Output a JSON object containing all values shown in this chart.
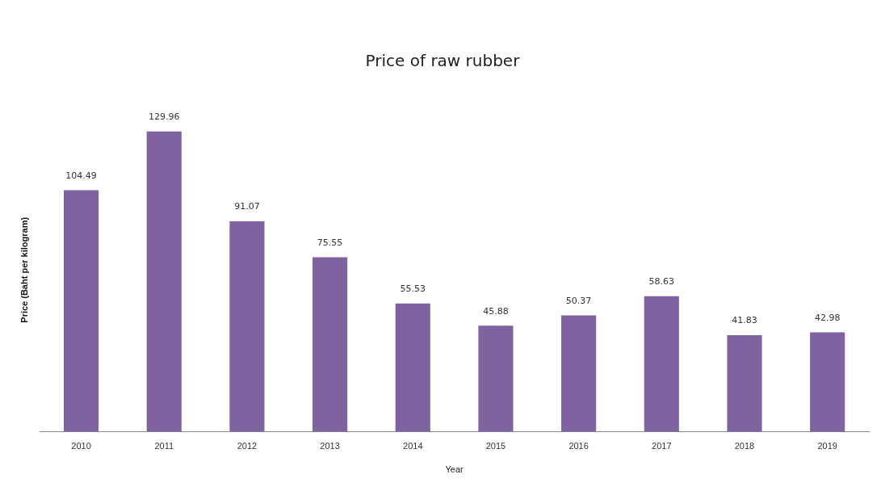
{
  "chart_data": {
    "type": "bar",
    "title": "Price of raw rubber",
    "xlabel": "Year",
    "ylabel": "Price (Baht per kilogram)",
    "categories": [
      "2010",
      "2011",
      "2012",
      "2013",
      "2014",
      "2015",
      "2016",
      "2017",
      "2018",
      "2019"
    ],
    "values": [
      104.49,
      129.96,
      91.07,
      75.55,
      55.53,
      45.88,
      50.37,
      58.63,
      41.83,
      42.98
    ],
    "color": "#7f62a0",
    "data_labels": true,
    "grid": false,
    "legend": false
  }
}
